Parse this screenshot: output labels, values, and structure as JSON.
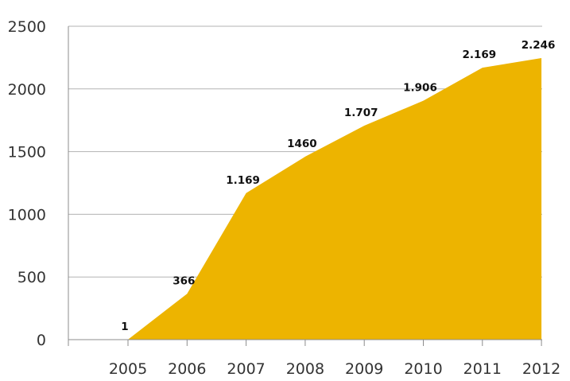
{
  "chart_data": {
    "type": "area",
    "title": "",
    "xlabel": "",
    "ylabel": "",
    "categories": [
      "2005",
      "2006",
      "2007",
      "2008",
      "2009",
      "2010",
      "2011",
      "2012"
    ],
    "series": [
      {
        "values": [
          1,
          366,
          1169,
          1460,
          1707,
          1906,
          2169,
          2246
        ],
        "data_labels": [
          "1",
          "366",
          "1.169",
          "1460",
          "1.707",
          "1.906",
          "2.169",
          "2.246"
        ],
        "color": "#EDB400"
      }
    ],
    "yticks": [
      "0",
      "500",
      "1000",
      "1500",
      "2000",
      "2500"
    ],
    "ylim": [
      0,
      2500
    ],
    "grid": true,
    "legend": "none",
    "colors": {
      "area": "#EDB400",
      "grid": "#b3b3b3",
      "axis": "#8c8c8c"
    }
  }
}
